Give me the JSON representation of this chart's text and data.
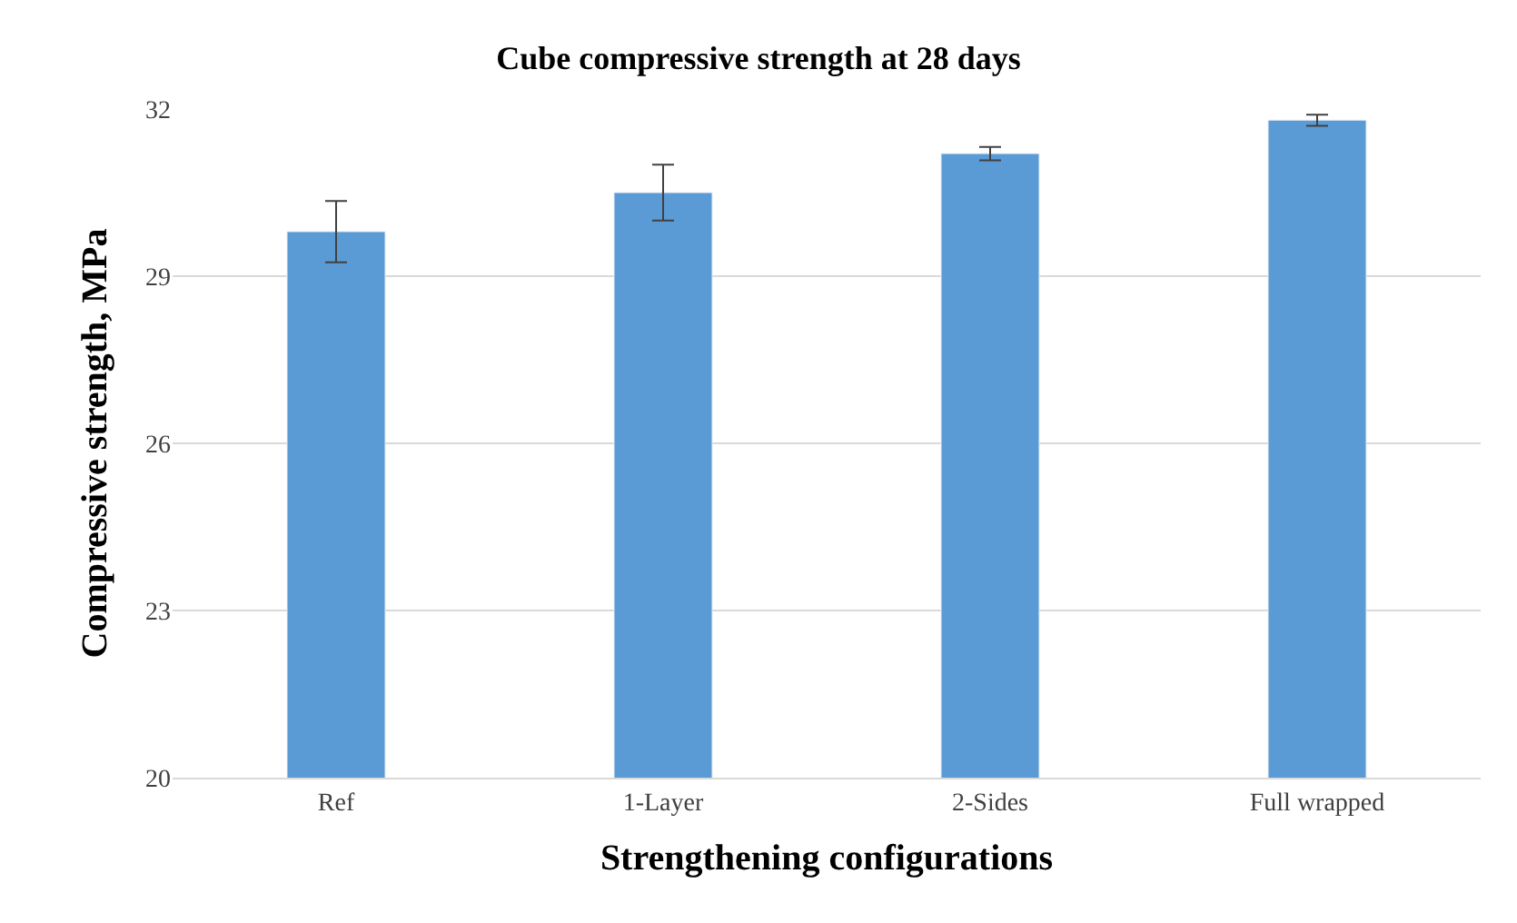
{
  "chart_data": {
    "type": "bar",
    "title": "Cube compressive strength at 28 days",
    "xlabel": "Strengthening configurations",
    "ylabel": "Compressive strength, MPa",
    "categories": [
      "Ref",
      "1-Layer",
      "2-Sides",
      "Full wrapped"
    ],
    "values": [
      29.8,
      30.5,
      31.2,
      31.8
    ],
    "errors": [
      0.55,
      0.5,
      0.12,
      0.1
    ],
    "color": "#5b9bd5",
    "ylim": [
      20,
      32
    ],
    "yticks": [
      20,
      23,
      26,
      29,
      32
    ],
    "grid": "y"
  }
}
